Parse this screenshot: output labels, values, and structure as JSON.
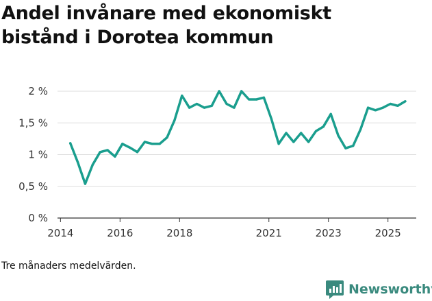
{
  "title": "Andel invånare med ekonomiskt bistånd i Dorotea kommun",
  "note": "Tre månaders medelvärden.",
  "brand": {
    "name": "Newsworthy",
    "icon": "newsworthy-logo-icon",
    "color": "#3a8a7e"
  },
  "colors": {
    "line": "#1a9e8e",
    "grid": "#dddddd",
    "axis": "#333333"
  },
  "chart_data": {
    "type": "line",
    "title": "Andel invånare med ekonomiskt bistånd i Dorotea kommun",
    "xlabel": "",
    "ylabel": "",
    "ylim": [
      0,
      2
    ],
    "xlim": [
      2013.9,
      2025.95
    ],
    "yticks": [
      0,
      0.5,
      1,
      1.5,
      2
    ],
    "ytick_labels": [
      "0 %",
      "0,5 %",
      "1 %",
      "1,5 %",
      "2 %"
    ],
    "xticks": [
      2014,
      2016,
      2018,
      2021,
      2023,
      2025
    ],
    "xtick_labels": [
      "2014",
      "2016",
      "2018",
      "2021",
      "2023",
      "2025"
    ],
    "grid": true,
    "series": [
      {
        "name": "Andel invånare med ekonomiskt bistånd",
        "x": [
          2014.33,
          2014.58,
          2014.83,
          2015.08,
          2015.33,
          2015.58,
          2015.83,
          2016.08,
          2016.33,
          2016.58,
          2016.83,
          2017.08,
          2017.33,
          2017.58,
          2017.83,
          2018.08,
          2018.33,
          2018.58,
          2018.83,
          2019.08,
          2019.33,
          2019.58,
          2019.83,
          2020.08,
          2020.33,
          2020.58,
          2020.83,
          2021.08,
          2021.33,
          2021.58,
          2021.83,
          2022.08,
          2022.33,
          2022.58,
          2022.83,
          2023.08,
          2023.33,
          2023.58,
          2023.83,
          2024.08,
          2024.33,
          2024.58,
          2024.83,
          2025.08,
          2025.33,
          2025.58
        ],
        "values": [
          1.18,
          0.88,
          0.54,
          0.84,
          1.04,
          1.07,
          0.97,
          1.17,
          1.11,
          1.04,
          1.2,
          1.17,
          1.17,
          1.27,
          1.54,
          1.93,
          1.74,
          1.8,
          1.74,
          1.77,
          2.0,
          1.8,
          1.74,
          2.0,
          1.87,
          1.87,
          1.9,
          1.57,
          1.17,
          1.34,
          1.2,
          1.34,
          1.2,
          1.37,
          1.44,
          1.64,
          1.3,
          1.1,
          1.14,
          1.4,
          1.74,
          1.7,
          1.74,
          1.8,
          1.77,
          1.84
        ]
      }
    ]
  }
}
